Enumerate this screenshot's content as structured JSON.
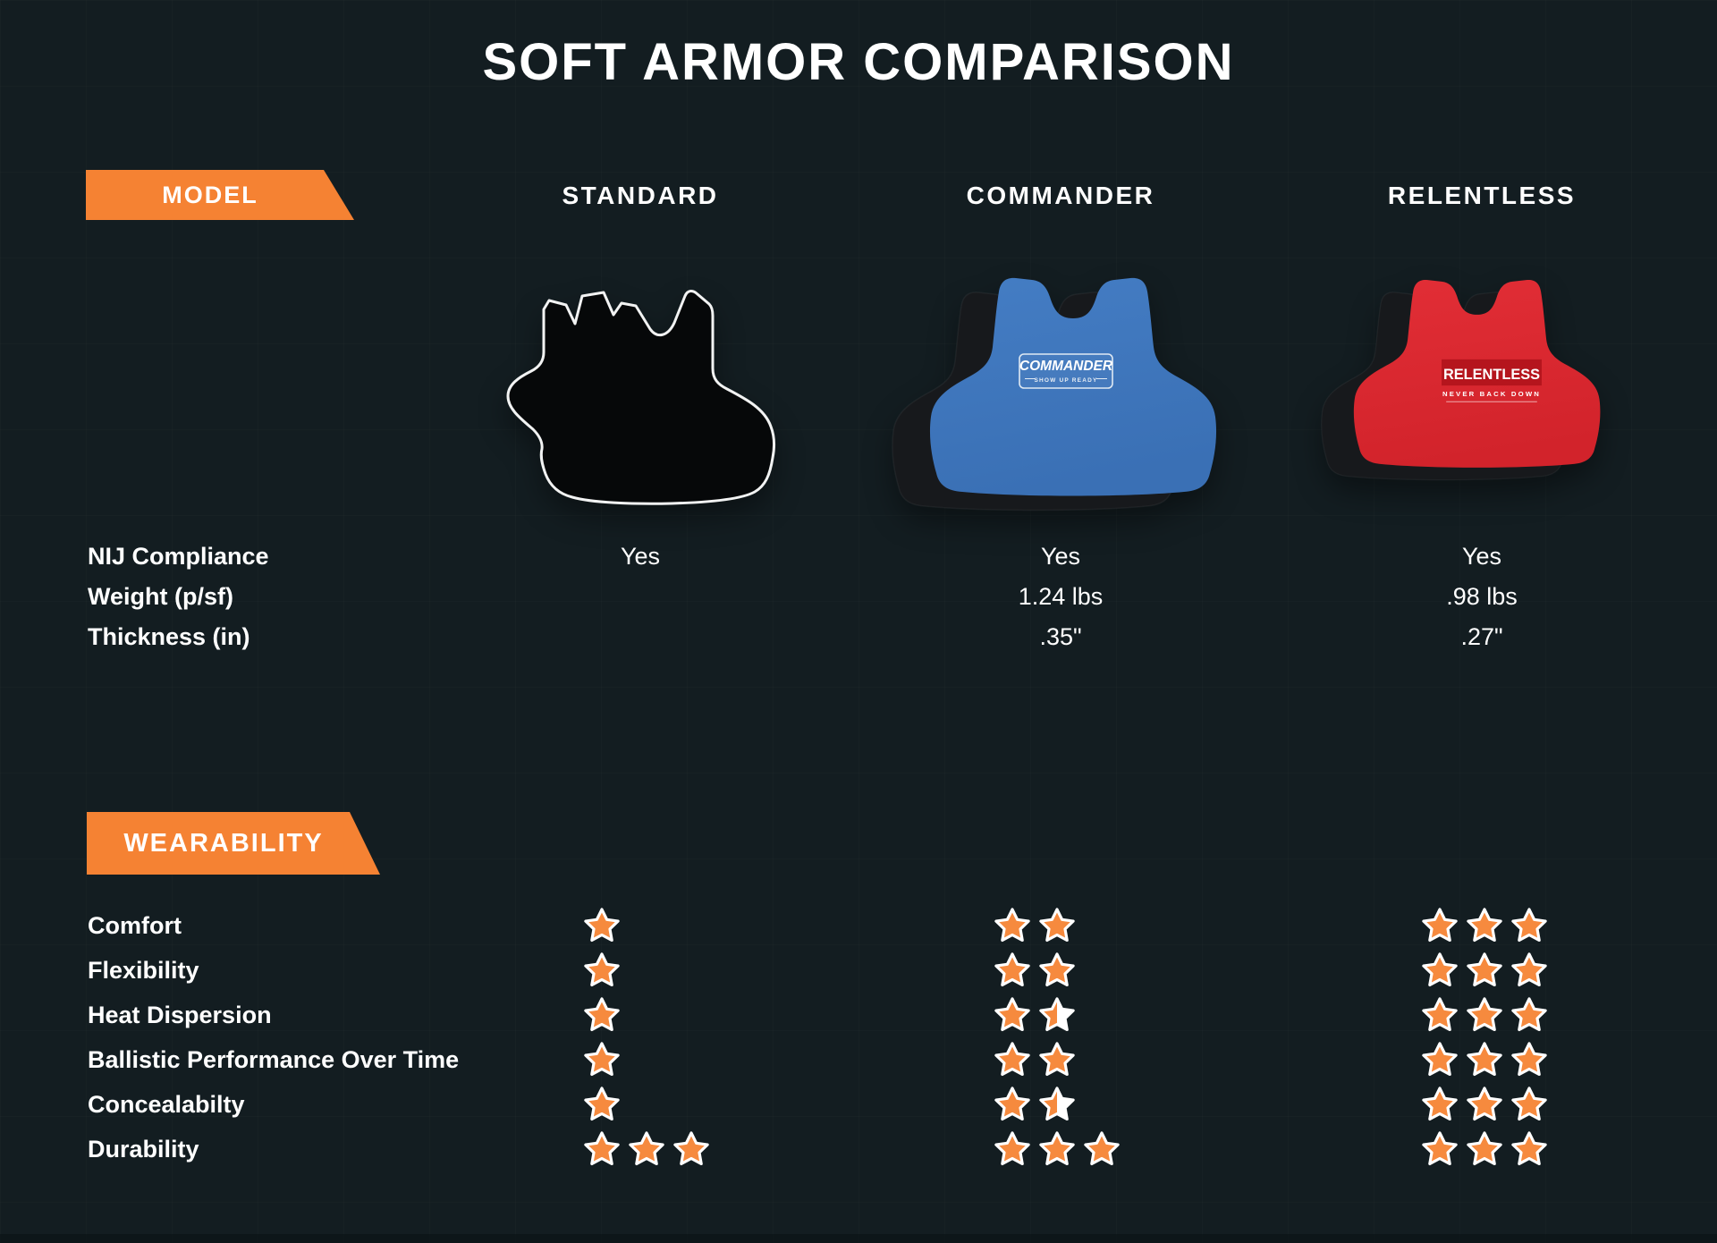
{
  "title": "SOFT ARMOR COMPARISON",
  "header": {
    "model_badge": "MODEL",
    "columns": [
      {
        "label": "STANDARD"
      },
      {
        "label": "COMMANDER"
      },
      {
        "label": "RELENTLESS"
      }
    ]
  },
  "vests": {
    "standard": {
      "name": "STANDARD"
    },
    "commander": {
      "name": "COMMANDER",
      "patch_title": "COMMANDER",
      "patch_tagline": "SHOW UP READY"
    },
    "relentless": {
      "name": "RELENTLESS",
      "patch_title": "RELENTLESS",
      "patch_tagline": "NEVER BACK DOWN"
    }
  },
  "specs": {
    "rows": [
      {
        "label": "NIJ Compliance",
        "values": [
          "Yes",
          "Yes",
          "Yes"
        ]
      },
      {
        "label": "Weight (p/sf)",
        "values": [
          "",
          "1.24 lbs",
          ".98 lbs"
        ]
      },
      {
        "label": "Thickness (in)",
        "values": [
          "",
          ".35\"",
          ".27\""
        ]
      }
    ]
  },
  "wearability": {
    "badge": "WEARABILITY",
    "rows": [
      {
        "label": "Comfort",
        "stars": [
          1,
          2,
          3
        ]
      },
      {
        "label": "Flexibility",
        "stars": [
          1,
          2,
          3
        ]
      },
      {
        "label": "Heat Dispersion",
        "stars": [
          1,
          1.5,
          3
        ]
      },
      {
        "label": "Ballistic Performance Over Time",
        "stars": [
          1,
          2,
          3
        ]
      },
      {
        "label": "Concealabilty",
        "stars": [
          1,
          1.5,
          3
        ]
      },
      {
        "label": "Durability",
        "stars": [
          3,
          3,
          3
        ]
      }
    ]
  },
  "colors": {
    "background": "#131d21",
    "accent_orange": "#f58233",
    "star_fill": "#f68a3e",
    "star_stroke": "#ffffff",
    "vest_blue": "#3b76bf",
    "vest_blue_dark": "#3568ab",
    "vest_red": "#dd2a32",
    "red_patch": "#b5151d",
    "vest_black": "#17191c",
    "standard_fill": "#060809",
    "text": "#ffffff"
  },
  "chart_data": {
    "type": "table",
    "title": "SOFT ARMOR COMPARISON",
    "columns": [
      "STANDARD",
      "COMMANDER",
      "RELENTLESS"
    ],
    "spec_rows": [
      {
        "label": "NIJ Compliance",
        "values": [
          "Yes",
          "Yes",
          "Yes"
        ]
      },
      {
        "label": "Weight (p/sf)",
        "values": [
          null,
          "1.24 lbs",
          ".98 lbs"
        ]
      },
      {
        "label": "Thickness (in)",
        "values": [
          null,
          ".35\"",
          ".27\""
        ]
      }
    ],
    "rating_rows_stars_max3": [
      {
        "label": "Comfort",
        "values": [
          1,
          2,
          3
        ]
      },
      {
        "label": "Flexibility",
        "values": [
          1,
          2,
          3
        ]
      },
      {
        "label": "Heat Dispersion",
        "values": [
          1,
          1.5,
          3
        ]
      },
      {
        "label": "Ballistic Performance Over Time",
        "values": [
          1,
          2,
          3
        ]
      },
      {
        "label": "Concealabilty",
        "values": [
          1,
          1.5,
          3
        ]
      },
      {
        "label": "Durability",
        "values": [
          3,
          3,
          3
        ]
      }
    ],
    "legend_position": "none",
    "grid": "subtle"
  }
}
